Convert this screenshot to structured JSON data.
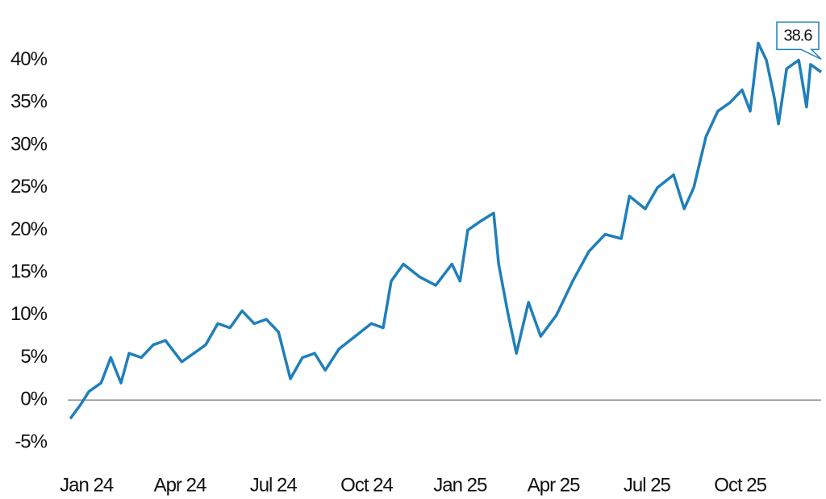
{
  "chart_data": {
    "type": "line",
    "x": [
      -0.52,
      -0.18,
      0.08,
      0.47,
      0.78,
      1.11,
      1.37,
      1.76,
      2.15,
      2.54,
      3.06,
      3.45,
      3.83,
      4.22,
      4.61,
      5.0,
      5.39,
      5.78,
      6.17,
      6.55,
      6.94,
      7.33,
      7.67,
      8.11,
      8.63,
      9.15,
      9.53,
      9.79,
      10.18,
      10.7,
      11.22,
      11.74,
      12.0,
      12.25,
      12.64,
      13.08,
      13.24,
      13.55,
      13.81,
      14.2,
      14.59,
      15.1,
      15.62,
      16.14,
      16.66,
      17.18,
      17.44,
      17.95,
      18.34,
      18.86,
      19.2,
      19.51,
      19.9,
      20.28,
      20.67,
      21.06,
      21.32,
      21.58,
      21.84,
      22.1,
      22.23,
      22.49,
      22.88,
      23.13,
      23.26,
      23.6
    ],
    "series": [
      {
        "color": "#1f7fba",
        "values": [
          -2.2,
          -0.5,
          1.0,
          2.0,
          5.0,
          2.0,
          5.5,
          5.0,
          6.5,
          7.0,
          4.5,
          5.5,
          6.5,
          9.0,
          8.5,
          10.5,
          9.0,
          9.5,
          8.0,
          2.5,
          5.0,
          5.5,
          3.5,
          6.0,
          7.5,
          9.0,
          8.5,
          14.0,
          16.0,
          14.5,
          13.5,
          16.0,
          14.0,
          20.0,
          21.0,
          22.0,
          16.0,
          10.0,
          5.5,
          11.5,
          7.5,
          10.0,
          14.0,
          17.5,
          19.5,
          19.0,
          24.0,
          22.5,
          25.0,
          26.5,
          22.5,
          25.0,
          31.0,
          34.0,
          35.0,
          36.5,
          34.0,
          42.0,
          40.0,
          35.5,
          32.5,
          39.0,
          40.0,
          34.5,
          39.5,
          38.6
        ]
      }
    ],
    "annotation": "38.6",
    "xlim": [
      -0.6,
      23.6
    ],
    "xticks": [
      {
        "value": 0,
        "label": "Jan 24"
      },
      {
        "value": 3,
        "label": "Apr 24"
      },
      {
        "value": 6,
        "label": "Jul 24"
      },
      {
        "value": 9,
        "label": "Oct 24"
      },
      {
        "value": 12,
        "label": "Jan 25"
      },
      {
        "value": 15,
        "label": "Apr 25"
      },
      {
        "value": 18,
        "label": "Jul 25"
      },
      {
        "value": 21,
        "label": "Oct 25"
      }
    ],
    "ylim": [
      -7,
      43
    ],
    "yticks": [
      {
        "value": -5,
        "label": "-5%"
      },
      {
        "value": 0,
        "label": "0%"
      },
      {
        "value": 5,
        "label": "5%"
      },
      {
        "value": 10,
        "label": "10%"
      },
      {
        "value": 15,
        "label": "15%"
      },
      {
        "value": 20,
        "label": "20%"
      },
      {
        "value": 25,
        "label": "25%"
      },
      {
        "value": 30,
        "label": "30%"
      },
      {
        "value": 35,
        "label": "35%"
      },
      {
        "value": 40,
        "label": "40%"
      }
    ],
    "zero_line": true
  }
}
